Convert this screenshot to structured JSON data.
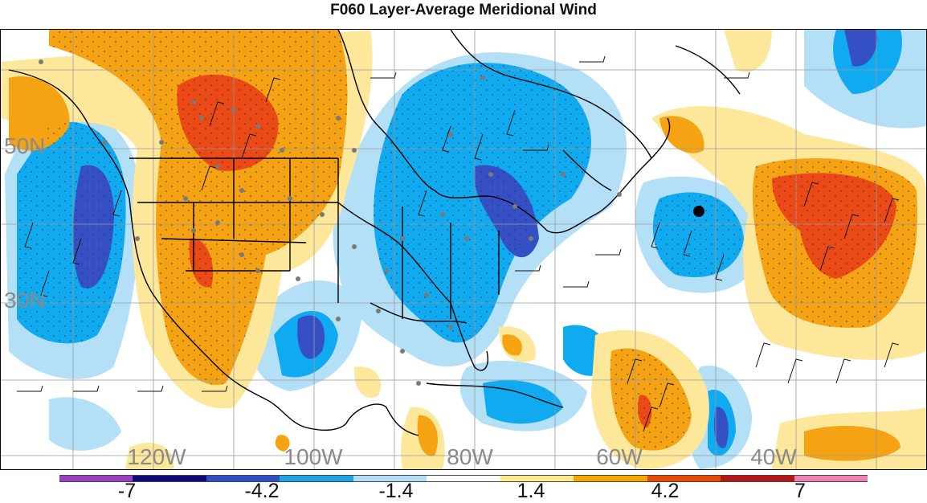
{
  "title": "F060 Layer-Average Meridional Wind",
  "map": {
    "lon_labels": [
      "120W",
      "100W",
      "80W",
      "60W",
      "40W"
    ],
    "lat_labels": [
      "50N",
      "30N"
    ],
    "marker": "black-dot"
  },
  "colorbar": {
    "colors": [
      "#9b3fc7",
      "#0a0a7a",
      "#2f4fc9",
      "#1aa6e6",
      "#b0dcf5",
      "#ffffff",
      "#ffeb8a",
      "#f7a800",
      "#ea4a00",
      "#b51515",
      "#f07fb5"
    ],
    "labels": [
      "-7",
      "-4.2",
      "-1.4",
      "1.4",
      "4.2",
      "7"
    ]
  },
  "palette": {
    "strong_neg": "#3550c4",
    "neg": "#10aaf0",
    "weak_neg": "#b3dff7",
    "weak_pos": "#fde79a",
    "pos": "#f5a313",
    "strong_pos": "#eb4a16"
  }
}
